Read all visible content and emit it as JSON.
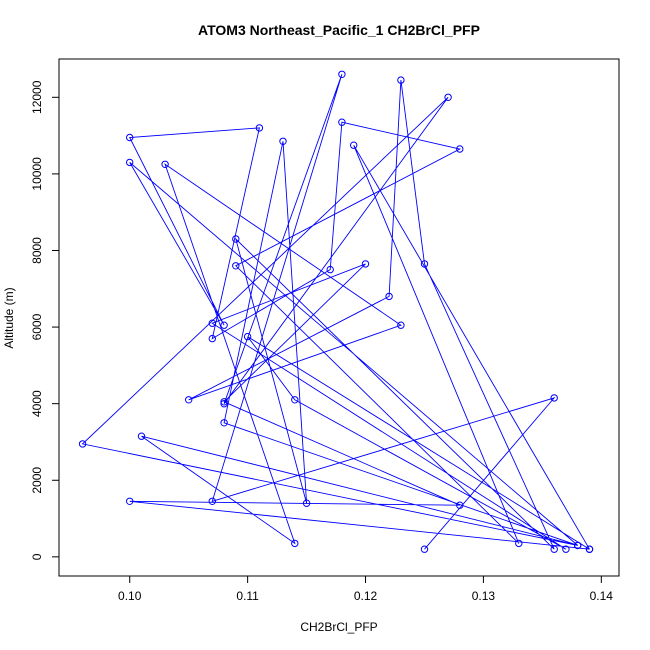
{
  "chart_data": {
    "type": "line",
    "title": "ATOM3 Northeast_Pacific_1 CH2BrCl_PFP",
    "xlabel": "CH2BrCl_PFP",
    "ylabel": "Altitude (m)",
    "xlim": [
      0.094,
      0.1415
    ],
    "ylim": [
      -500,
      13000
    ],
    "xticks": [
      0.1,
      0.11,
      0.12,
      0.13,
      0.14
    ],
    "xtick_labels": [
      "0.10",
      "0.11",
      "0.12",
      "0.13",
      "0.14"
    ],
    "yticks": [
      0,
      2000,
      4000,
      6000,
      8000,
      10000,
      12000
    ],
    "ytick_labels": [
      "0",
      "2000",
      "4000",
      "6000",
      "8000",
      "10000",
      "12000"
    ],
    "grid": false,
    "markers": "open-circle",
    "color": "#0000ff",
    "series": [
      {
        "points": [
          [
            0.125,
            200
          ],
          [
            0.136,
            4150
          ],
          [
            0.107,
            1450
          ],
          [
            0.118,
            12600
          ],
          [
            0.108,
            4000
          ],
          [
            0.127,
            12000
          ],
          [
            0.096,
            2950
          ],
          [
            0.138,
            300
          ],
          [
            0.101,
            3150
          ],
          [
            0.114,
            350
          ],
          [
            0.103,
            10250
          ],
          [
            0.123,
            6050
          ],
          [
            0.105,
            4100
          ],
          [
            0.122,
            6800
          ],
          [
            0.123,
            12450
          ],
          [
            0.125,
            7650
          ],
          [
            0.136,
            200
          ],
          [
            0.109,
            8300
          ],
          [
            0.115,
            1400
          ],
          [
            0.113,
            10850
          ],
          [
            0.108,
            3500
          ],
          [
            0.138,
            300
          ],
          [
            0.1,
            10300
          ],
          [
            0.108,
            6050
          ],
          [
            0.1,
            10950
          ],
          [
            0.111,
            11200
          ],
          [
            0.107,
            5700
          ],
          [
            0.117,
            7500
          ],
          [
            0.118,
            11350
          ],
          [
            0.128,
            10650
          ],
          [
            0.109,
            7600
          ],
          [
            0.133,
            350
          ],
          [
            0.119,
            10750
          ],
          [
            0.139,
            200
          ],
          [
            0.11,
            5750
          ],
          [
            0.114,
            4100
          ],
          [
            0.137,
            200
          ],
          [
            0.107,
            6100
          ],
          [
            0.12,
            7650
          ],
          [
            0.108,
            4050
          ],
          [
            0.128,
            1350
          ],
          [
            0.1,
            1450
          ],
          [
            0.139,
            200
          ]
        ]
      }
    ]
  }
}
